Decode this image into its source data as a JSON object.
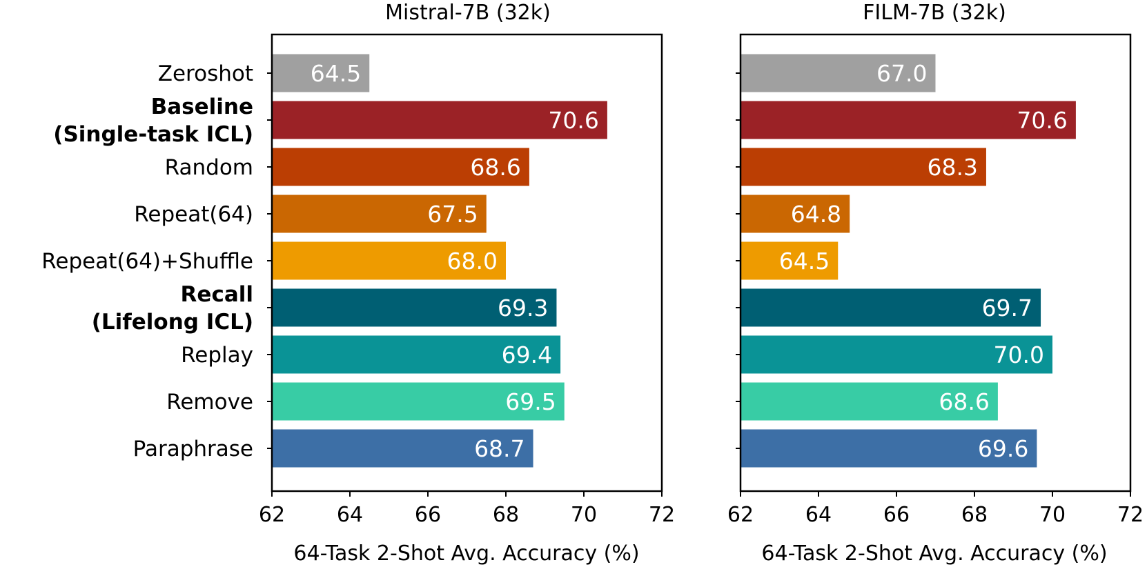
{
  "chart_data": [
    {
      "type": "bar",
      "orientation": "horizontal",
      "title": "Mistral-7B (32k)",
      "xlabel": "64-Task 2-Shot Avg. Accuracy (%)",
      "xlim": [
        62,
        72
      ],
      "xticks": [
        "62",
        "64",
        "66",
        "68",
        "70",
        "72"
      ],
      "categories": [
        {
          "label": [
            "Zeroshot"
          ],
          "bold": false
        },
        {
          "label": [
            "Baseline",
            "(Single-task ICL)"
          ],
          "bold": true
        },
        {
          "label": [
            "Random"
          ],
          "bold": false
        },
        {
          "label": [
            "Repeat(64)"
          ],
          "bold": false
        },
        {
          "label": [
            "Repeat(64)+Shuffle"
          ],
          "bold": false
        },
        {
          "label": [
            "Recall",
            "(Lifelong ICL)"
          ],
          "bold": true
        },
        {
          "label": [
            "Replay"
          ],
          "bold": false
        },
        {
          "label": [
            "Remove"
          ],
          "bold": false
        },
        {
          "label": [
            "Paraphrase"
          ],
          "bold": false
        }
      ],
      "values": [
        64.5,
        70.6,
        68.6,
        67.5,
        68.0,
        69.3,
        69.4,
        69.5,
        68.7
      ],
      "value_labels": [
        "64.5",
        "70.6",
        "68.6",
        "67.5",
        "68.0",
        "69.3",
        "69.4",
        "69.5",
        "68.7"
      ],
      "colors": [
        "#a0a0a0",
        "#9b2226",
        "#bb3e03",
        "#ca6702",
        "#ee9b00",
        "#005f73",
        "#0a9396",
        "#38cca5",
        "#3d6fa6"
      ]
    },
    {
      "type": "bar",
      "orientation": "horizontal",
      "title": "FILM-7B (32k)",
      "xlabel": "64-Task 2-Shot Avg. Accuracy (%)",
      "xlim": [
        62,
        72
      ],
      "xticks": [
        "62",
        "64",
        "66",
        "68",
        "70",
        "72"
      ],
      "values": [
        67.0,
        70.6,
        68.3,
        64.8,
        64.5,
        69.7,
        70.0,
        68.6,
        69.6
      ],
      "value_labels": [
        "67.0",
        "70.6",
        "68.3",
        "64.8",
        "64.5",
        "69.7",
        "70.0",
        "68.6",
        "69.6"
      ],
      "colors": [
        "#a0a0a0",
        "#9b2226",
        "#bb3e03",
        "#ca6702",
        "#ee9b00",
        "#005f73",
        "#0a9396",
        "#38cca5",
        "#3d6fa6"
      ]
    }
  ]
}
